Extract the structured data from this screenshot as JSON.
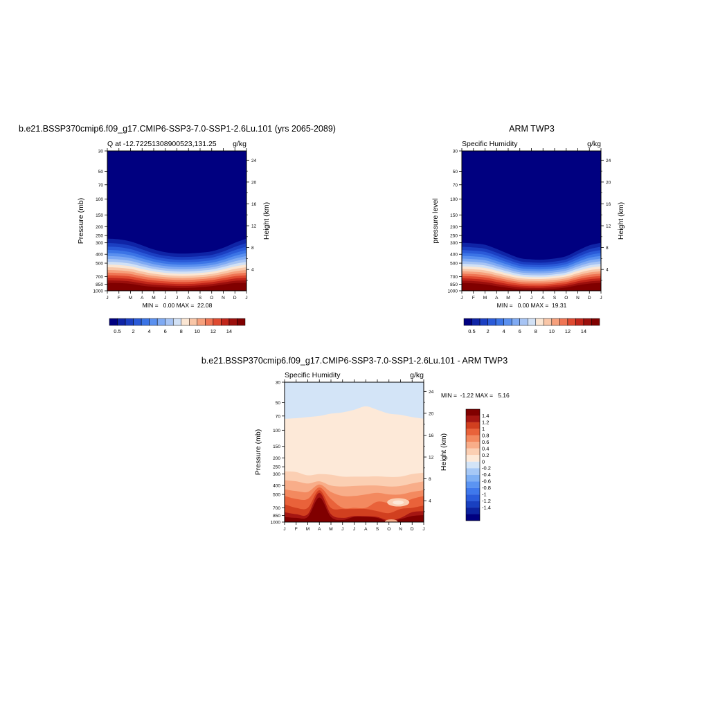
{
  "palettes": {
    "abs": [
      "#000080",
      "#0f24a6",
      "#1b3fc2",
      "#2a5ad8",
      "#3b74e6",
      "#5a90ef",
      "#7faaf3",
      "#a7c4f4",
      "#d2e1f5",
      "#fbe6d3",
      "#f9c6a7",
      "#f6a07c",
      "#ef7554",
      "#df4a30",
      "#c1261a",
      "#9b0f0c",
      "#800000"
    ],
    "diff": [
      "#000080",
      "#0c23a0",
      "#1940c0",
      "#2a5cdc",
      "#3f78ec",
      "#5b94f2",
      "#7fb0f4",
      "#a6c8f6",
      "#d3e4f7",
      "#fde9d8",
      "#fbcfb3",
      "#f8ad89",
      "#f3895f",
      "#e9623a",
      "#d13f1f",
      "#a51612",
      "#800000"
    ]
  },
  "chart_data": [
    {
      "type": "heatmap",
      "title": "b.e21.BSSP370cmip6.f09_g17.CMIP6-SSP3-7.0-SSP1-2.6Lu.101 (yrs 2065-2089)",
      "subtitle_left": "Q at -12.72251308900523,131.25",
      "subtitle_right": "g/kg",
      "ylabel": "Pressure (mb)",
      "ylabel_right": "Height (km)",
      "x_ticks": [
        "J",
        "F",
        "M",
        "A",
        "M",
        "J",
        "J",
        "A",
        "S",
        "O",
        "N",
        "D",
        "J"
      ],
      "y_ticks": [
        "30",
        "50",
        "70",
        "100",
        "150",
        "200",
        "250",
        "300",
        "400",
        "500",
        "700",
        "850",
        "1000"
      ],
      "y_ticks_right": [
        "24",
        "20",
        "16",
        "12",
        "8",
        "4"
      ],
      "stats": "MIN =   0.00 MAX =  22.08",
      "colorbar_labels": [
        "0.5",
        "2",
        "4",
        "6",
        "8",
        "10",
        "12",
        "14"
      ],
      "moisture_top_mb": [
        270,
        275,
        290,
        320,
        355,
        380,
        392,
        392,
        385,
        372,
        340,
        300,
        270
      ],
      "moist_layer_mb": [
        820,
        825,
        840,
        880,
        905,
        920,
        930,
        930,
        915,
        890,
        855,
        825,
        820
      ]
    },
    {
      "type": "heatmap",
      "title": "ARM TWP3",
      "subtitle_left": "Specific Humidity",
      "subtitle_right": "g/kg",
      "ylabel": "pressure level",
      "ylabel_right": "Height (km)",
      "x_ticks": [
        "J",
        "F",
        "M",
        "A",
        "M",
        "J",
        "J",
        "A",
        "S",
        "O",
        "N",
        "D",
        "J"
      ],
      "y_ticks": [
        "30",
        "50",
        "70",
        "100",
        "150",
        "200",
        "250",
        "300",
        "400",
        "500",
        "700",
        "850",
        "1000"
      ],
      "y_ticks_right": [
        "24",
        "20",
        "16",
        "12",
        "8",
        "4"
      ],
      "stats": "MIN =   0.00 MAX =  19.31",
      "colorbar_labels": [
        "0.5",
        "2",
        "4",
        "6",
        "8",
        "10",
        "12",
        "14"
      ],
      "moisture_top_mb": [
        300,
        305,
        315,
        350,
        395,
        440,
        455,
        458,
        445,
        420,
        365,
        320,
        300
      ],
      "moist_layer_mb": [
        820,
        830,
        850,
        890,
        930,
        960,
        970,
        968,
        950,
        920,
        870,
        835,
        820
      ]
    },
    {
      "type": "heatmap",
      "title": "b.e21.BSSP370cmip6.f09_g17.CMIP6-SSP3-7.0-SSP1-2.6Lu.101 - ARM TWP3",
      "subtitle_left": "Specific Humidity",
      "subtitle_right": "g/kg",
      "ylabel": "Pressure (mb)",
      "ylabel_right": "Height (km)",
      "x_ticks": [
        "J",
        "F",
        "M",
        "A",
        "M",
        "J",
        "J",
        "A",
        "S",
        "O",
        "N",
        "D",
        "J"
      ],
      "y_ticks": [
        "30",
        "50",
        "70",
        "100",
        "150",
        "200",
        "250",
        "300",
        "400",
        "500",
        "700",
        "850",
        "1000"
      ],
      "y_ticks_right": [
        "24",
        "20",
        "16",
        "12",
        "8",
        "4"
      ],
      "stats": "MIN =  -1.22 MAX =   5.16",
      "colorbar_labels": [
        "1.4",
        "1.2",
        "1",
        "0.8",
        "0.6",
        "0.4",
        "0.2",
        "0",
        "-0.2",
        "-0.4",
        "-0.6",
        "-0.8",
        "-1",
        "-1.2",
        "-1.4"
      ],
      "zero_line_mb": [
        75,
        74,
        72,
        70,
        66,
        64,
        60,
        55,
        60,
        66,
        68,
        72,
        75
      ]
    }
  ]
}
